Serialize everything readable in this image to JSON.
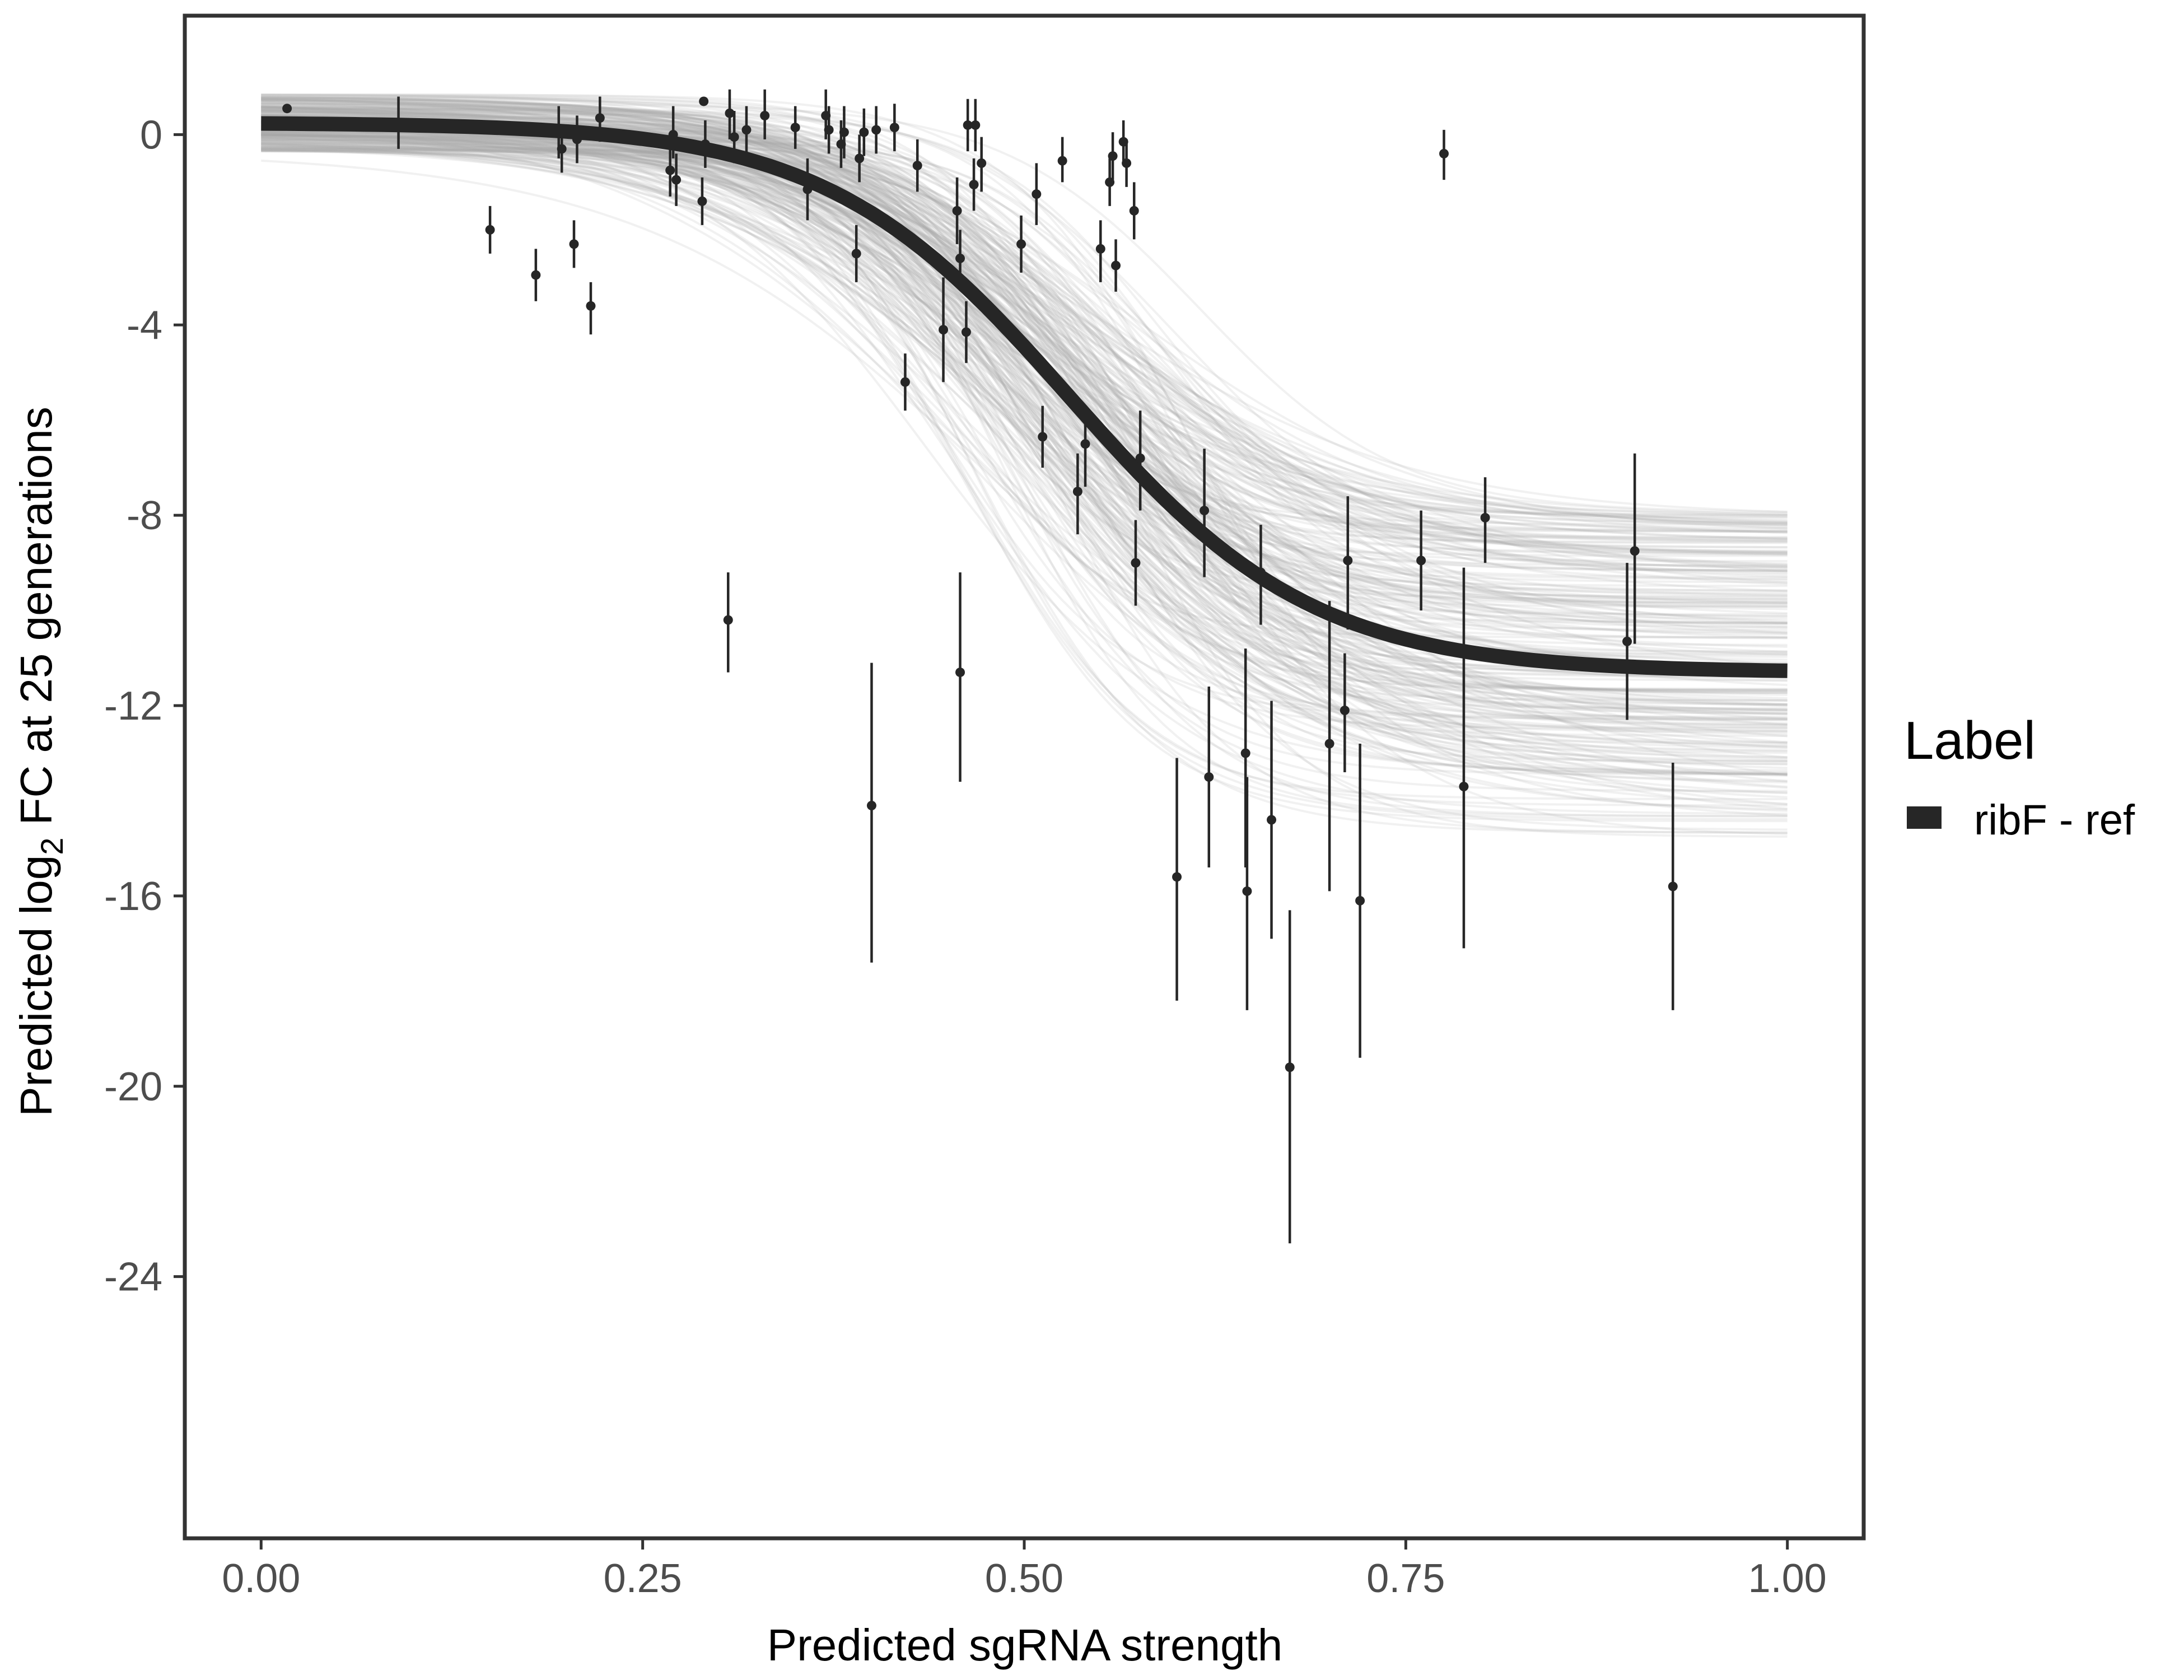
{
  "chart_data": {
    "type": "scatter",
    "title": "",
    "xlabel": "Predicted sgRNA strength",
    "ylabel": {
      "prefix": "Predicted  log",
      "subscript": "2",
      "suffix": " FC at 25 generations"
    },
    "xlim": [
      -0.05,
      1.05
    ],
    "ylim": [
      -29.5,
      2.5
    ],
    "x_ticks": [
      0.0,
      0.25,
      0.5,
      0.75,
      1.0
    ],
    "x_tick_labels": [
      "0.00",
      "0.25",
      "0.50",
      "0.75",
      "1.00"
    ],
    "y_ticks": [
      0,
      -4,
      -8,
      -12,
      -16,
      -20,
      -24
    ],
    "y_tick_labels": [
      "0",
      "-4",
      "-8",
      "-12",
      "-16",
      "-20",
      "-24"
    ],
    "grid": false,
    "legend": {
      "title": "Label",
      "position": "right",
      "entries": [
        {
          "label": "ribF - ref",
          "color": "#262626"
        }
      ]
    },
    "colors": {
      "fit_line": "#262626",
      "posterior_draws": "#a6a6a6",
      "points": "#262626",
      "panel_border": "#333333"
    },
    "fit_curve": {
      "model": "logistic",
      "upper": 0.25,
      "lower": -11.3,
      "midpoint": 0.53,
      "slope": 12.5,
      "x_range": [
        0.0,
        1.0
      ]
    },
    "posterior_band": {
      "upper_range": [
        -0.35,
        0.85
      ],
      "lower_range": [
        -14.8,
        -7.9
      ],
      "midpoint_range": [
        0.43,
        0.62
      ],
      "slope_range": [
        8.5,
        19
      ]
    },
    "points": [
      {
        "x": 0.017,
        "y": 0.55,
        "lo": 0.55,
        "hi": 0.55
      },
      {
        "x": 0.09,
        "y": 0.2,
        "lo": -0.3,
        "hi": 0.8
      },
      {
        "x": 0.15,
        "y": -2.0,
        "lo": -2.5,
        "hi": -1.5
      },
      {
        "x": 0.18,
        "y": -2.95,
        "lo": -3.5,
        "hi": -2.4
      },
      {
        "x": 0.195,
        "y": 0.05,
        "lo": -0.5,
        "hi": 0.6
      },
      {
        "x": 0.197,
        "y": -0.3,
        "lo": -0.8,
        "hi": 0.2
      },
      {
        "x": 0.205,
        "y": -2.3,
        "lo": -2.8,
        "hi": -1.8
      },
      {
        "x": 0.207,
        "y": -0.1,
        "lo": -0.6,
        "hi": 0.4
      },
      {
        "x": 0.216,
        "y": -3.6,
        "lo": -4.2,
        "hi": -3.1
      },
      {
        "x": 0.222,
        "y": 0.35,
        "lo": -0.15,
        "hi": 0.8
      },
      {
        "x": 0.268,
        "y": -0.75,
        "lo": -1.3,
        "hi": -0.2
      },
      {
        "x": 0.27,
        "y": 0.0,
        "lo": -0.5,
        "hi": 0.6
      },
      {
        "x": 0.272,
        "y": -0.95,
        "lo": -1.5,
        "hi": -0.4
      },
      {
        "x": 0.289,
        "y": -1.4,
        "lo": -1.9,
        "hi": -0.9
      },
      {
        "x": 0.29,
        "y": 0.7,
        "lo": 0.7,
        "hi": 0.7
      },
      {
        "x": 0.291,
        "y": -0.2,
        "lo": -0.7,
        "hi": 0.3
      },
      {
        "x": 0.306,
        "y": -10.2,
        "lo": -11.3,
        "hi": -9.2
      },
      {
        "x": 0.307,
        "y": 0.45,
        "lo": -0.1,
        "hi": 0.95
      },
      {
        "x": 0.31,
        "y": -0.05,
        "lo": -0.6,
        "hi": 0.5
      },
      {
        "x": 0.318,
        "y": 0.1,
        "lo": -0.4,
        "hi": 0.6
      },
      {
        "x": 0.33,
        "y": 0.4,
        "lo": -0.1,
        "hi": 0.95
      },
      {
        "x": 0.35,
        "y": 0.15,
        "lo": -0.3,
        "hi": 0.6
      },
      {
        "x": 0.358,
        "y": -1.15,
        "lo": -1.8,
        "hi": -0.5
      },
      {
        "x": 0.37,
        "y": 0.4,
        "lo": -0.1,
        "hi": 0.95
      },
      {
        "x": 0.372,
        "y": 0.1,
        "lo": -0.4,
        "hi": 0.6
      },
      {
        "x": 0.38,
        "y": -0.2,
        "lo": -0.7,
        "hi": 0.3
      },
      {
        "x": 0.382,
        "y": 0.05,
        "lo": -0.5,
        "hi": 0.6
      },
      {
        "x": 0.39,
        "y": -2.5,
        "lo": -3.1,
        "hi": -1.9
      },
      {
        "x": 0.392,
        "y": -0.5,
        "lo": -1.0,
        "hi": 0.0
      },
      {
        "x": 0.395,
        "y": 0.05,
        "lo": -0.45,
        "hi": 0.55
      },
      {
        "x": 0.4,
        "y": -14.1,
        "lo": -17.4,
        "hi": -11.1
      },
      {
        "x": 0.403,
        "y": 0.1,
        "lo": -0.4,
        "hi": 0.6
      },
      {
        "x": 0.415,
        "y": 0.15,
        "lo": -0.35,
        "hi": 0.65
      },
      {
        "x": 0.422,
        "y": -5.2,
        "lo": -5.8,
        "hi": -4.6
      },
      {
        "x": 0.43,
        "y": -0.65,
        "lo": -1.2,
        "hi": -0.1
      },
      {
        "x": 0.447,
        "y": -4.1,
        "lo": -5.2,
        "hi": -3.0
      },
      {
        "x": 0.456,
        "y": -1.6,
        "lo": -2.3,
        "hi": -0.9
      },
      {
        "x": 0.458,
        "y": -2.6,
        "lo": -3.2,
        "hi": -2.0
      },
      {
        "x": 0.458,
        "y": -11.3,
        "lo": -13.6,
        "hi": -9.2
      },
      {
        "x": 0.462,
        "y": -4.15,
        "lo": -4.8,
        "hi": -3.5
      },
      {
        "x": 0.463,
        "y": 0.2,
        "lo": -0.35,
        "hi": 0.75
      },
      {
        "x": 0.467,
        "y": -1.05,
        "lo": -1.6,
        "hi": -0.5
      },
      {
        "x": 0.468,
        "y": 0.2,
        "lo": -0.35,
        "hi": 0.75
      },
      {
        "x": 0.472,
        "y": -0.6,
        "lo": -1.2,
        "hi": -0.05
      },
      {
        "x": 0.498,
        "y": -2.3,
        "lo": -2.9,
        "hi": -1.7
      },
      {
        "x": 0.508,
        "y": -1.25,
        "lo": -1.9,
        "hi": -0.6
      },
      {
        "x": 0.512,
        "y": -6.35,
        "lo": -7.0,
        "hi": -5.7
      },
      {
        "x": 0.525,
        "y": -0.55,
        "lo": -1.0,
        "hi": -0.05
      },
      {
        "x": 0.535,
        "y": -7.5,
        "lo": -8.4,
        "hi": -6.7
      },
      {
        "x": 0.54,
        "y": -6.5,
        "lo": -7.4,
        "hi": -5.7
      },
      {
        "x": 0.55,
        "y": -2.4,
        "lo": -3.1,
        "hi": -1.8
      },
      {
        "x": 0.556,
        "y": -1.0,
        "lo": -1.5,
        "hi": -0.5
      },
      {
        "x": 0.558,
        "y": -0.45,
        "lo": -0.95,
        "hi": 0.05
      },
      {
        "x": 0.56,
        "y": -2.75,
        "lo": -3.3,
        "hi": -2.2
      },
      {
        "x": 0.565,
        "y": -0.15,
        "lo": -0.55,
        "hi": 0.3
      },
      {
        "x": 0.567,
        "y": -0.6,
        "lo": -1.1,
        "hi": -0.1
      },
      {
        "x": 0.572,
        "y": -1.6,
        "lo": -2.2,
        "hi": -1.0
      },
      {
        "x": 0.573,
        "y": -9.0,
        "lo": -9.9,
        "hi": -8.1
      },
      {
        "x": 0.576,
        "y": -6.8,
        "lo": -7.9,
        "hi": -5.8
      },
      {
        "x": 0.6,
        "y": -15.6,
        "lo": -18.2,
        "hi": -13.1
      },
      {
        "x": 0.618,
        "y": -7.9,
        "lo": -9.3,
        "hi": -6.6
      },
      {
        "x": 0.621,
        "y": -13.5,
        "lo": -15.4,
        "hi": -11.6
      },
      {
        "x": 0.645,
        "y": -13.0,
        "lo": -15.4,
        "hi": -10.8
      },
      {
        "x": 0.646,
        "y": -15.9,
        "lo": -18.4,
        "hi": -13.5
      },
      {
        "x": 0.655,
        "y": -9.2,
        "lo": -10.3,
        "hi": -8.2
      },
      {
        "x": 0.662,
        "y": -14.4,
        "lo": -16.9,
        "hi": -11.9
      },
      {
        "x": 0.674,
        "y": -19.6,
        "lo": -23.3,
        "hi": -16.3
      },
      {
        "x": 0.7,
        "y": -12.8,
        "lo": -15.9,
        "hi": -9.8
      },
      {
        "x": 0.71,
        "y": -12.1,
        "lo": -13.4,
        "hi": -10.9
      },
      {
        "x": 0.712,
        "y": -8.95,
        "lo": -10.4,
        "hi": -7.6
      },
      {
        "x": 0.72,
        "y": -16.1,
        "lo": -19.4,
        "hi": -12.8
      },
      {
        "x": 0.76,
        "y": -8.95,
        "lo": -10.0,
        "hi": -7.9
      },
      {
        "x": 0.775,
        "y": -0.4,
        "lo": -0.95,
        "hi": 0.1
      },
      {
        "x": 0.788,
        "y": -13.7,
        "lo": -17.1,
        "hi": -9.1
      },
      {
        "x": 0.802,
        "y": -8.05,
        "lo": -9.0,
        "hi": -7.2
      },
      {
        "x": 0.895,
        "y": -10.65,
        "lo": -12.3,
        "hi": -9.0
      },
      {
        "x": 0.9,
        "y": -8.75,
        "lo": -10.7,
        "hi": -6.7
      },
      {
        "x": 0.925,
        "y": -15.8,
        "lo": -18.4,
        "hi": -13.2
      }
    ]
  }
}
